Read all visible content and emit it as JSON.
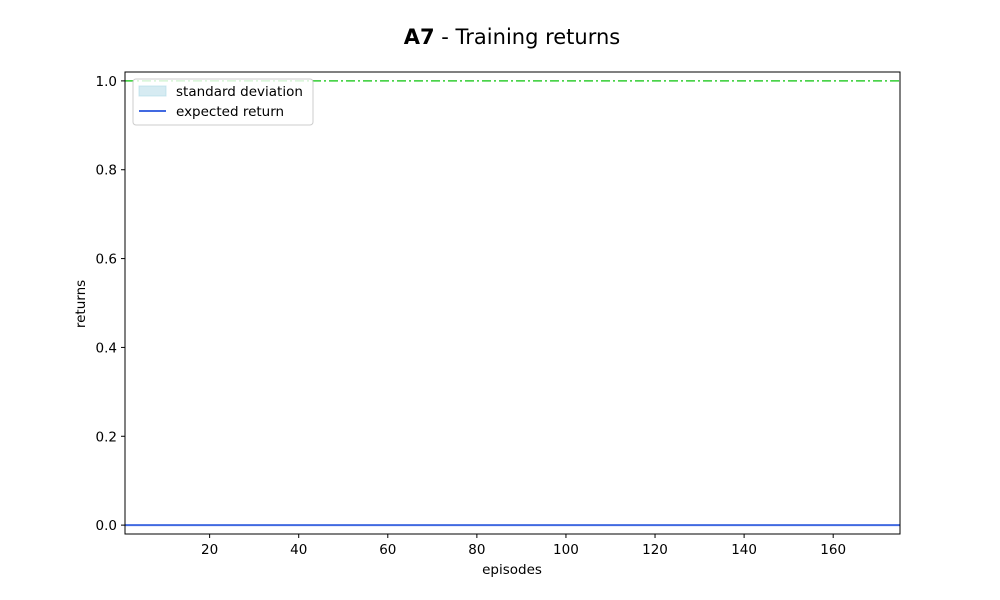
{
  "chart_data": {
    "type": "line",
    "title_bold": "A7",
    "title_rest": " - Training returns",
    "xlabel": "episodes",
    "ylabel": "returns",
    "xlim": [
      1,
      175
    ],
    "ylim": [
      -0.02,
      1.02
    ],
    "xticks": [
      20,
      40,
      60,
      80,
      100,
      120,
      140,
      160
    ],
    "yticks": [
      0.0,
      0.2,
      0.4,
      0.6,
      0.8,
      1.0
    ],
    "ytick_labels": [
      "0.0",
      "0.2",
      "0.4",
      "0.6",
      "0.8",
      "1.0"
    ],
    "legend_position": "upper-left",
    "legend": [
      {
        "label": "standard deviation",
        "kind": "patch",
        "color": "#add8e6"
      },
      {
        "label": "expected return",
        "kind": "line",
        "color": "#4169e1"
      }
    ],
    "series": [
      {
        "name": "expected return",
        "x": [
          1,
          175
        ],
        "y": [
          0.0,
          0.0
        ],
        "color": "#4169e1",
        "style": "solid"
      }
    ],
    "reference_lines": [
      {
        "y": 1.0,
        "color": "#32cd32",
        "style": "dashdot"
      }
    ],
    "grid": false
  }
}
